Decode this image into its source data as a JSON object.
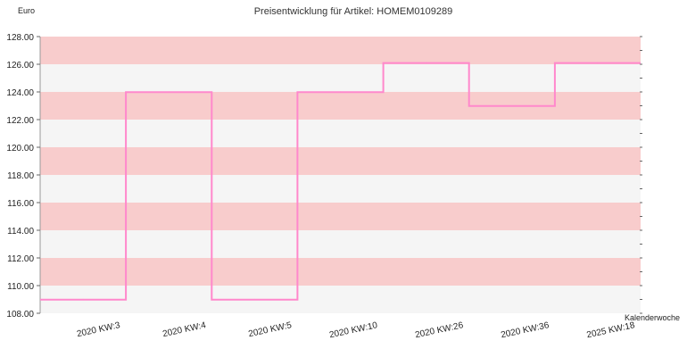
{
  "chart_data": {
    "type": "line",
    "step": true,
    "title": "Preisentwicklung für Artikel: HOMEM0109289",
    "ylabel": "Euro",
    "xlabel": "Kalenderwoche",
    "ylim": [
      108,
      128
    ],
    "yticks": [
      "108.00",
      "110.00",
      "112.00",
      "114.00",
      "116.00",
      "118.00",
      "120.00",
      "122.00",
      "124.00",
      "126.00",
      "128.00"
    ],
    "categories": [
      "2020 KW:3",
      "2020 KW:4",
      "2020 KW:5",
      "2020 KW:10",
      "2020 KW:26",
      "2020 KW:36",
      "2025 KW:18"
    ],
    "series": [
      {
        "values": [
          108.99,
          123.99,
          108.99,
          123.99,
          126.09,
          122.99,
          126.09
        ],
        "color": "#ff88cc"
      }
    ],
    "band_colors": [
      "#f8cccc",
      "#f5f5f5"
    ],
    "grid": true
  }
}
